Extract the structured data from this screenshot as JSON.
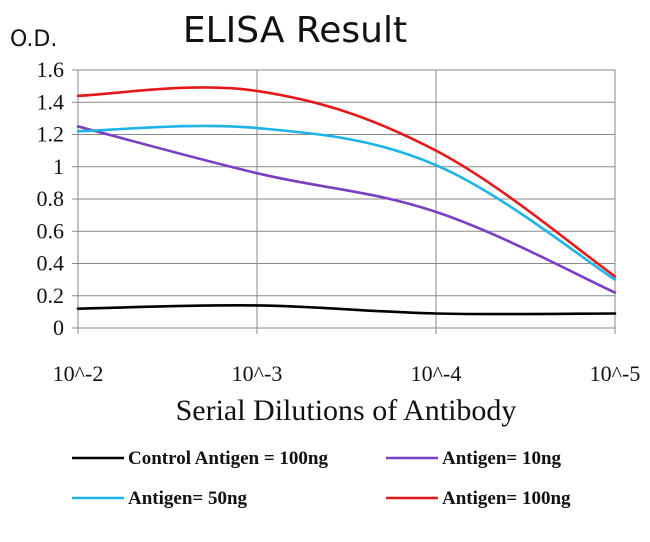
{
  "chart_data": {
    "type": "line",
    "title": "ELISA Result",
    "ylabel": "O.D.",
    "xlabel": "Serial Dilutions of Antibody",
    "x": [
      "10^-2",
      "10^-3",
      "10^-4",
      "10^-5"
    ],
    "ylim": [
      0,
      1.6
    ],
    "yticks": [
      "0",
      "0.2",
      "0.4",
      "0.6",
      "0.8",
      "1",
      "1.2",
      "1.4",
      "1.6"
    ],
    "grid": true,
    "legend_position": "bottom",
    "series": [
      {
        "name": "Control Antigen = 100ng",
        "color": "#000000",
        "values": [
          0.12,
          0.14,
          0.09,
          0.09
        ]
      },
      {
        "name": "Antigen= 10ng",
        "color": "#7b3fc4",
        "values": [
          1.25,
          0.96,
          0.72,
          0.22
        ]
      },
      {
        "name": "Antigen= 50ng",
        "color": "#1fb4e8",
        "values": [
          1.22,
          1.24,
          1.01,
          0.3
        ]
      },
      {
        "name": "Antigen= 100ng",
        "color": "#e5191b",
        "values": [
          1.44,
          1.47,
          1.1,
          0.32
        ]
      }
    ]
  }
}
